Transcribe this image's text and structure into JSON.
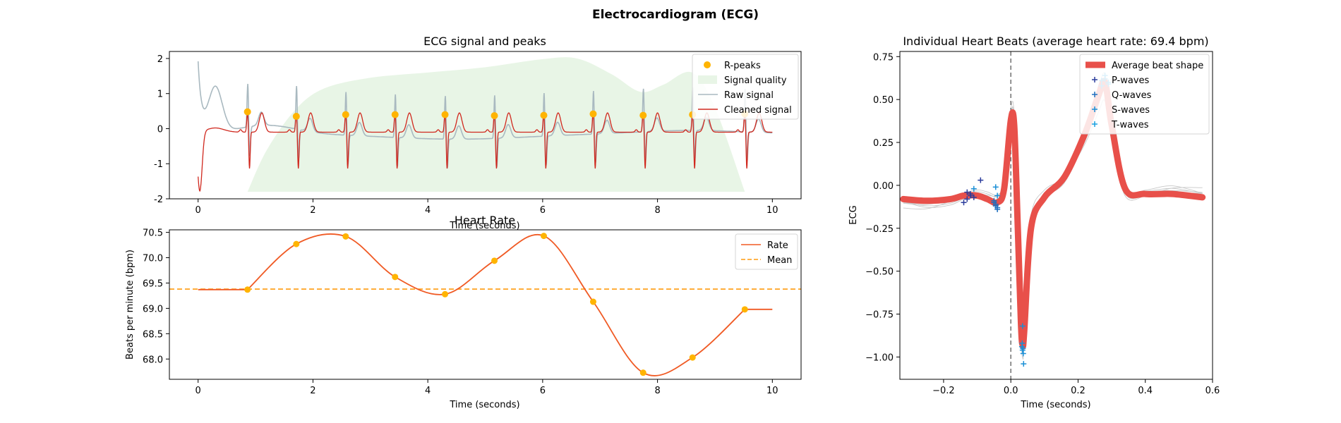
{
  "figure": {
    "title": "Electrocardiogram (ECG)"
  },
  "colors": {
    "rpeak": "#ffb400",
    "quality": "#e8f5e6",
    "raw": "#a9b9c0",
    "clean": "#d0281e",
    "rate": "#f05a24",
    "mean": "#ff9b0f",
    "avg_beat": "#e8504a",
    "p_wave": "#2b3c9c",
    "q_wave": "#1f6fbf",
    "s_wave": "#1a8fd6",
    "t_wave": "#1aa0e0",
    "beat_lines": "#c8c8c8"
  },
  "chart_data": [
    {
      "id": "ecg",
      "type": "line",
      "title": "ECG signal and peaks",
      "xlabel": "Time (seconds)",
      "ylabel": "",
      "xlim": [
        -0.5,
        10.5
      ],
      "ylim": [
        -2,
        2.2
      ],
      "xticks": [
        0,
        2,
        4,
        6,
        8,
        10
      ],
      "yticks": [
        -2,
        -1,
        0,
        1,
        2
      ],
      "legend": {
        "position": "top-right",
        "entries": [
          "R-peaks",
          "Signal quality",
          "Raw signal",
          "Cleaned signal"
        ]
      },
      "r_peaks": {
        "x": [
          0.86,
          1.71,
          2.57,
          3.43,
          4.3,
          5.16,
          6.02,
          6.88,
          7.75,
          8.61,
          9.52
        ],
        "y": [
          0.48,
          0.35,
          0.4,
          0.4,
          0.4,
          0.37,
          0.38,
          0.42,
          0.38,
          0.4,
          0.42
        ]
      },
      "signal_quality": {
        "x": [
          0.86,
          1.2,
          1.7,
          2.2,
          3.0,
          4.0,
          5.0,
          6.0,
          6.6,
          7.2,
          7.7,
          8.1,
          8.6,
          9.0,
          9.52
        ],
        "y": [
          -1.8,
          -0.6,
          0.55,
          1.15,
          1.45,
          1.6,
          1.75,
          1.98,
          2.0,
          1.55,
          1.05,
          1.25,
          1.6,
          0.6,
          -1.8
        ]
      },
      "raw_signal": {
        "start_x": 0,
        "end_x": 10,
        "baseline": -0.15,
        "first_peak": 2.05
      },
      "cleaned_signal": {
        "start_x": 0,
        "end_x": 10,
        "baseline": -0.1,
        "first_trough": -1.8
      }
    },
    {
      "id": "rate",
      "type": "line",
      "title": "Heart Rate",
      "xlabel": "Time (seconds)",
      "ylabel": "Beats per minute (bpm)",
      "xlim": [
        -0.5,
        10.5
      ],
      "ylim": [
        67.6,
        70.55
      ],
      "xticks": [
        0,
        2,
        4,
        6,
        8,
        10
      ],
      "yticks": [
        68.0,
        68.5,
        69.0,
        69.5,
        70.0,
        70.5
      ],
      "ytick_labels": [
        "68.0",
        "68.5",
        "69.0",
        "69.5",
        "70.0",
        "70.5"
      ],
      "legend": {
        "position": "top-right",
        "entries": [
          "Rate",
          "Mean"
        ]
      },
      "mean": 69.38,
      "x": [
        0.86,
        1.71,
        2.57,
        3.43,
        4.3,
        5.16,
        6.02,
        6.88,
        7.75,
        8.61,
        9.52
      ],
      "y": [
        69.37,
        70.27,
        70.42,
        69.62,
        69.28,
        69.94,
        70.43,
        69.13,
        67.73,
        68.03,
        68.98
      ]
    },
    {
      "id": "beats",
      "type": "line",
      "title": "Individual Heart Beats (average heart rate: 69.4 bpm)",
      "xlabel": "Time (seconds)",
      "ylabel": "ECG",
      "xlim": [
        -0.33,
        0.6
      ],
      "ylim": [
        -1.13,
        0.78
      ],
      "xticks": [
        -0.2,
        0.0,
        0.2,
        0.4,
        0.6
      ],
      "xtick_labels": [
        "−0.2",
        "0.0",
        "0.2",
        "0.4",
        "0.6"
      ],
      "yticks": [
        -1.0,
        -0.75,
        -0.5,
        -0.25,
        0.0,
        0.25,
        0.5,
        0.75
      ],
      "ytick_labels": [
        "−1.00",
        "−0.75",
        "−0.50",
        "−0.25",
        "0.00",
        "0.25",
        "0.50",
        "0.75"
      ],
      "legend": {
        "position": "top-right",
        "entries": [
          "Average beat shape",
          "P-waves",
          "Q-waves",
          "S-waves",
          "T-waves"
        ]
      },
      "average_beat": {
        "x": [
          -0.32,
          -0.25,
          -0.18,
          -0.14,
          -0.1,
          -0.07,
          -0.04,
          -0.02,
          0.0,
          0.01,
          0.02,
          0.03,
          0.035,
          0.04,
          0.06,
          0.1,
          0.16,
          0.22,
          0.26,
          0.28,
          0.3,
          0.34,
          0.4,
          0.48,
          0.57
        ],
        "y": [
          -0.08,
          -0.09,
          -0.08,
          -0.06,
          -0.06,
          -0.08,
          -0.1,
          -0.02,
          0.38,
          0.35,
          -0.2,
          -0.8,
          -0.93,
          -0.85,
          -0.25,
          -0.07,
          0.05,
          0.3,
          0.52,
          0.6,
          0.35,
          -0.02,
          -0.05,
          -0.05,
          -0.07
        ]
      },
      "p_waves": {
        "x": [
          -0.14,
          -0.13,
          -0.12,
          -0.11,
          -0.13,
          -0.12,
          -0.09
        ],
        "y": [
          -0.1,
          -0.08,
          -0.05,
          -0.07,
          -0.04,
          -0.06,
          0.03
        ]
      },
      "q_waves": {
        "x": [
          -0.05,
          -0.045,
          -0.04,
          -0.05,
          -0.045,
          -0.04
        ],
        "y": [
          -0.1,
          -0.12,
          -0.14,
          -0.09,
          -0.11,
          -0.13
        ]
      },
      "s_waves": {
        "x": [
          0.033,
          0.035,
          0.037,
          0.034,
          0.036,
          0.038
        ],
        "y": [
          -0.94,
          -0.96,
          -0.98,
          -0.92,
          -0.95,
          -1.04
        ]
      },
      "t_waves": {
        "x": [
          0.27,
          0.28,
          0.29,
          0.28,
          0.27,
          0.29
        ],
        "y": [
          0.58,
          0.62,
          0.6,
          0.64,
          0.61,
          0.59
        ]
      },
      "extra_wave_marks": {
        "x": [
          -0.045,
          -0.04,
          -0.11,
          0.035
        ],
        "y": [
          -0.01,
          -0.06,
          -0.02,
          -0.82
        ]
      }
    }
  ]
}
